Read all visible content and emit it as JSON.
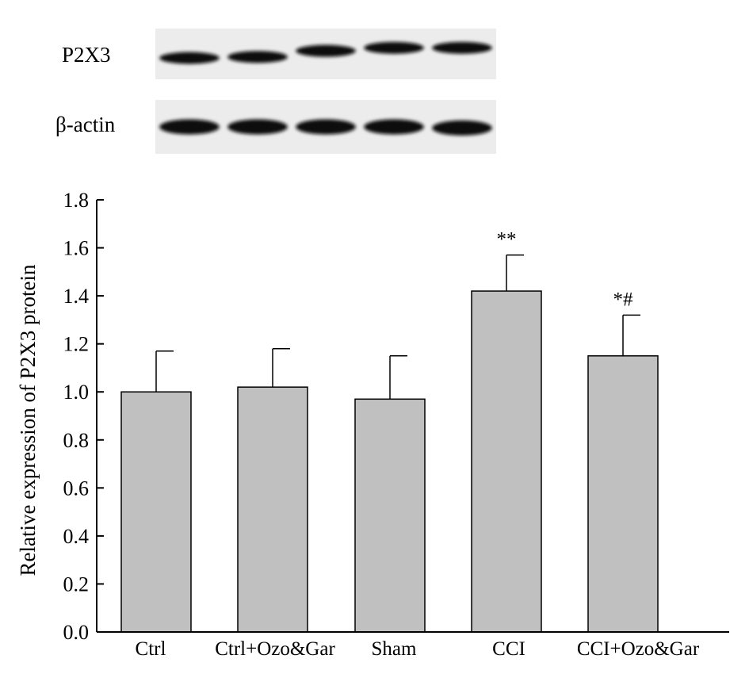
{
  "blot": {
    "rows": [
      {
        "label": "P2X3",
        "band_offsets": [
          0.58,
          0.56,
          0.44,
          0.38,
          0.38
        ]
      },
      {
        "label": "β-actin",
        "band_offsets": [
          0.5,
          0.5,
          0.5,
          0.5,
          0.52
        ]
      }
    ],
    "lanes": 5
  },
  "chart_data": {
    "type": "bar",
    "title": "",
    "xlabel": "",
    "ylabel": "Relative expression of P2X3 protein",
    "categories": [
      "Ctrl",
      "Ctrl+Ozo&Gar",
      "Sham",
      "CCI",
      "CCI+Ozo&Gar"
    ],
    "values": [
      1.0,
      1.02,
      0.97,
      1.42,
      1.15
    ],
    "errors": [
      0.17,
      0.16,
      0.18,
      0.15,
      0.17
    ],
    "annotations": [
      "",
      "",
      "",
      "**",
      "*#"
    ],
    "ylim": [
      0.0,
      1.8
    ],
    "yticks": [
      "0.0",
      "0.2",
      "0.4",
      "0.6",
      "0.8",
      "1.0",
      "1.2",
      "1.4",
      "1.6",
      "1.8"
    ],
    "bar_color": "#c0c0c0",
    "grid": false,
    "legend": "none"
  }
}
